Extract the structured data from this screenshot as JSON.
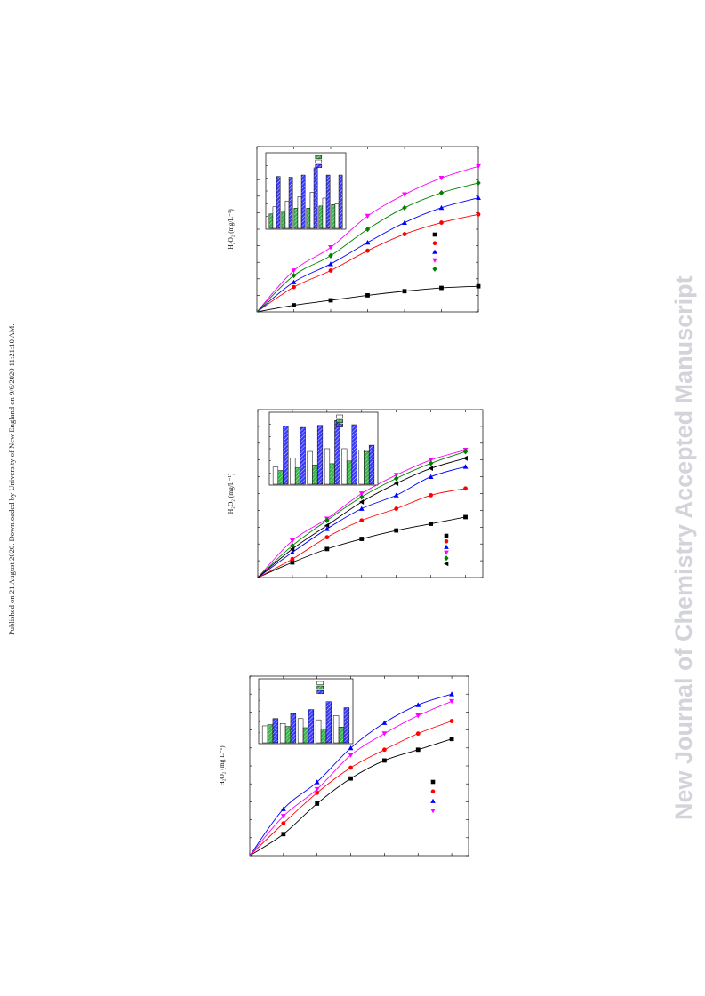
{
  "side_note": "Published on 21 August 2020. Downloaded by University of New England on 9/6/2020 11:21:10 AM.",
  "watermark": "New Journal of Chemistry Accepted Manuscript",
  "colors": {
    "black": "#000000",
    "red": "#ff0000",
    "blue": "#0000ff",
    "magenta": "#ff00ff",
    "green": "#008000",
    "inset_white": "#ffffff",
    "inset_green": "#39b54a",
    "inset_blue": "#3b3bff"
  },
  "chart_data": [
    {
      "type": "line",
      "ylabel": "H₂O₂ (mg/L⁻¹)",
      "xlim": [
        0,
        6
      ],
      "ylim": [
        0,
        100
      ],
      "x": [
        1,
        2,
        3,
        4,
        5,
        6
      ],
      "series": [
        {
          "marker": "square",
          "color": "#000000",
          "values": [
            4,
            7,
            10,
            12.5,
            14.5,
            15.5
          ]
        },
        {
          "marker": "circle",
          "color": "#ff0000",
          "values": [
            15,
            25,
            37,
            47,
            54,
            59
          ]
        },
        {
          "marker": "triangle-up",
          "color": "#0000ff",
          "values": [
            18,
            29,
            42,
            54,
            63,
            69
          ]
        },
        {
          "marker": "triangle-down",
          "color": "#ff00ff",
          "values": [
            25,
            39,
            58,
            71,
            81,
            88
          ]
        },
        {
          "marker": "diamond",
          "color": "#008000",
          "values": [
            22,
            34,
            50,
            63,
            72,
            78
          ]
        }
      ],
      "inset": {
        "type": "bar",
        "groups": 6,
        "series": [
          {
            "color": "#39b54a",
            "values": [
              20,
              24,
              28,
              28,
              31,
              33
            ]
          },
          {
            "color": "#ffffff",
            "values": [
              30,
              38,
              44,
              50,
              42,
              34
            ]
          },
          {
            "color": "#3b3bff",
            "values": [
              72,
              71,
              74,
              84,
              74,
              74
            ]
          }
        ]
      }
    },
    {
      "type": "line",
      "ylabel": "H₂O₂ (mg/L⁻¹)",
      "xlim": [
        0,
        6.5
      ],
      "ylim": [
        0,
        100
      ],
      "x": [
        1,
        2,
        3,
        4,
        5,
        6
      ],
      "series": [
        {
          "marker": "square",
          "color": "#000000",
          "values": [
            9,
            17,
            23,
            28,
            32,
            36
          ]
        },
        {
          "marker": "circle",
          "color": "#ff0000",
          "values": [
            11,
            24,
            34,
            41,
            49,
            53
          ]
        },
        {
          "marker": "triangle-up",
          "color": "#0000ff",
          "values": [
            15,
            29,
            41,
            49,
            60,
            66
          ]
        },
        {
          "marker": "triangle-down",
          "color": "#ff00ff",
          "values": [
            22,
            35,
            50,
            61,
            70,
            76
          ]
        },
        {
          "marker": "diamond",
          "color": "#008000",
          "values": [
            19,
            34,
            48,
            59,
            68,
            75
          ]
        },
        {
          "marker": "triangle-left",
          "color": "#000000",
          "values": [
            17,
            31,
            45,
            56,
            65,
            71
          ]
        }
      ],
      "inset": {
        "type": "bar",
        "groups": 6,
        "series": [
          {
            "color": "#ffffff",
            "values": [
              25,
              38,
              48,
              52,
              52,
              50
            ]
          },
          {
            "color": "#39b54a",
            "values": [
              20,
              24,
              28,
              30,
              34,
              48
            ]
          },
          {
            "color": "#3b3bff",
            "values": [
              85,
              83,
              86,
              93,
              87,
              57
            ]
          }
        ]
      }
    },
    {
      "type": "line",
      "ylabel": "H₂O₂ (mg L⁻¹)",
      "xlim": [
        0,
        6.5
      ],
      "ylim": [
        0,
        100
      ],
      "x": [
        1,
        2,
        3,
        4,
        5,
        6
      ],
      "series": [
        {
          "marker": "square",
          "color": "#000000",
          "values": [
            12,
            29,
            43,
            53,
            59,
            65
          ]
        },
        {
          "marker": "circle",
          "color": "#ff0000",
          "values": [
            18,
            35,
            49,
            59,
            68,
            75
          ]
        },
        {
          "marker": "triangle-up",
          "color": "#0000ff",
          "values": [
            26,
            41,
            60,
            74,
            84,
            90
          ]
        },
        {
          "marker": "triangle-down",
          "color": "#ff00ff",
          "values": [
            22,
            37,
            56,
            68,
            78,
            86
          ]
        }
      ],
      "inset": {
        "type": "bar",
        "groups": 5,
        "series": [
          {
            "color": "#ffffff",
            "values": [
              28,
              32,
              40,
              38,
              45
            ]
          },
          {
            "color": "#39b54a",
            "values": [
              30,
              27,
              25,
              23,
              26
            ]
          },
          {
            "color": "#3b3bff",
            "values": [
              40,
              48,
              55,
              68,
              58
            ]
          }
        ]
      }
    }
  ]
}
